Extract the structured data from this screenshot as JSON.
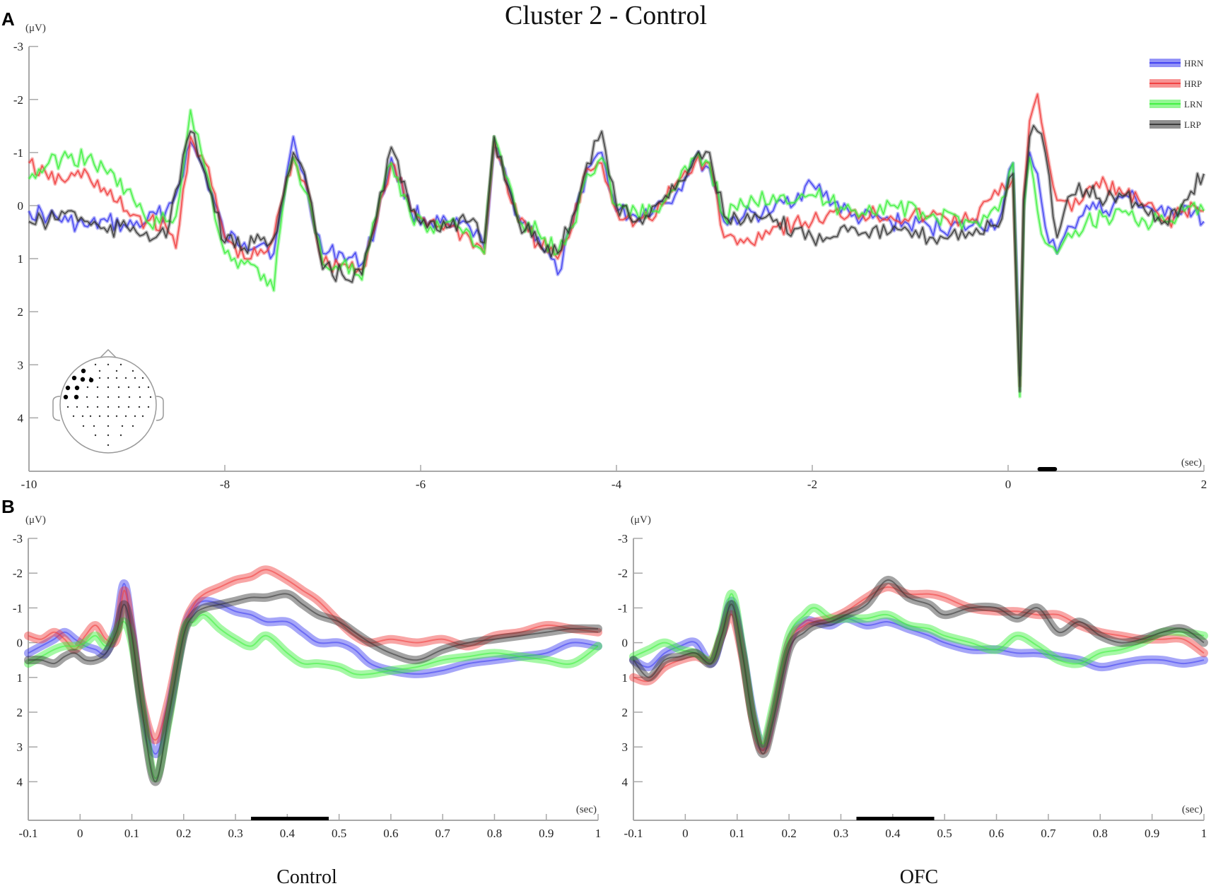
{
  "figure": {
    "title": "Cluster 2 - Control",
    "panel_a_letter": "A",
    "panel_b_letter": "B",
    "y_unit": "(μV)",
    "x_unit": "(sec)",
    "subplot_left_title": "Control",
    "subplot_right_title": "OFC",
    "legend": [
      {
        "label": "HRN",
        "color": "#3a3af0"
      },
      {
        "label": "HRP",
        "color": "#f03a3a"
      },
      {
        "label": "LRN",
        "color": "#3af03a"
      },
      {
        "label": "LRP",
        "color": "#333333"
      }
    ],
    "scalp_map": {
      "highlighted_electrodes": 8,
      "description": "left frontal-temporal cluster"
    }
  },
  "chart_data": [
    {
      "id": "panel-a",
      "type": "line",
      "title": "Cluster 2 - Control",
      "xlabel": "(sec)",
      "ylabel": "(μV)",
      "xlim": [
        -10,
        2
      ],
      "ylim": [
        4.8,
        -3
      ],
      "y_inverted": true,
      "xticks": [
        -10,
        -8,
        -6,
        -4,
        -2,
        0,
        2
      ],
      "xtick_labels": [
        "-10",
        "-8",
        "-6",
        "-4",
        "-2",
        "0",
        "2"
      ],
      "yticks": [
        -3,
        -2,
        -1,
        0,
        1,
        2,
        3,
        4
      ],
      "ytick_labels": [
        "-3",
        "-2",
        "-1",
        "0",
        "1",
        "2",
        "3",
        "4"
      ],
      "legend_position": "top-right",
      "significance_bar": [
        0.3,
        0.5
      ],
      "x": [
        -10,
        -9.8,
        -9.6,
        -9.4,
        -9.2,
        -9.0,
        -8.8,
        -8.6,
        -8.5,
        -8.35,
        -8.2,
        -8.0,
        -7.8,
        -7.6,
        -7.5,
        -7.4,
        -7.3,
        -7.15,
        -7.0,
        -6.8,
        -6.6,
        -6.45,
        -6.3,
        -6.1,
        -5.9,
        -5.7,
        -5.5,
        -5.35,
        -5.25,
        -5.0,
        -4.8,
        -4.6,
        -4.45,
        -4.3,
        -4.15,
        -4.0,
        -3.8,
        -3.6,
        -3.4,
        -3.2,
        -3.05,
        -2.9,
        -2.7,
        -2.4,
        -2.0,
        -1.6,
        -1.2,
        -0.8,
        -0.4,
        -0.1,
        0.05,
        0.12,
        0.16,
        0.22,
        0.3,
        0.38,
        0.5,
        0.65,
        0.8,
        1.0,
        1.2,
        1.4,
        1.6,
        1.8,
        2.0
      ],
      "series": [
        {
          "name": "HRN",
          "color": "#3a3af0",
          "values": [
            0.1,
            0.2,
            0.3,
            0.4,
            0.3,
            0.4,
            0.3,
            0.1,
            -0.2,
            -1.2,
            -0.6,
            0.6,
            0.7,
            0.7,
            0.9,
            -0.1,
            -1.3,
            -0.2,
            0.9,
            0.9,
            1.1,
            0.3,
            -0.9,
            0.1,
            0.3,
            0.4,
            0.4,
            0.8,
            -1.1,
            0.2,
            0.6,
            1.3,
            0.4,
            -0.7,
            -1.0,
            0.1,
            0.2,
            0.0,
            -0.2,
            -0.9,
            -0.7,
            0.3,
            0.2,
            0.1,
            -0.4,
            0.2,
            0.3,
            0.4,
            0.4,
            0.3,
            -0.8,
            3.2,
            0.0,
            -1.0,
            -0.6,
            0.4,
            0.9,
            0.4,
            0.0,
            0.1,
            -0.2,
            0.0,
            0.2,
            0.0,
            0.3
          ]
        },
        {
          "name": "HRP",
          "color": "#f03a3a",
          "values": [
            -0.8,
            -0.5,
            -0.5,
            -0.6,
            -0.2,
            0.1,
            0.3,
            0.4,
            0.8,
            -1.3,
            -0.8,
            0.6,
            1.0,
            0.9,
            0.6,
            -0.2,
            -0.9,
            -0.3,
            1.1,
            1.1,
            1.2,
            0.3,
            -0.8,
            0.1,
            0.3,
            0.4,
            0.6,
            0.9,
            -1.2,
            0.3,
            0.7,
            1.0,
            0.4,
            -0.7,
            -0.8,
            0.1,
            0.3,
            0.2,
            -0.4,
            -0.8,
            -0.8,
            0.6,
            0.7,
            0.4,
            0.3,
            0.1,
            0.2,
            0.2,
            0.3,
            -0.2,
            -0.5,
            3.4,
            -0.2,
            -1.6,
            -2.1,
            -1.2,
            -0.1,
            0.1,
            -0.3,
            -0.4,
            -0.2,
            0.0,
            0.3,
            0.1,
            0.1
          ]
        },
        {
          "name": "LRN",
          "color": "#3af03a",
          "values": [
            -0.5,
            -0.8,
            -0.9,
            -0.9,
            -0.6,
            -0.3,
            0.3,
            0.3,
            0.2,
            -1.8,
            -0.7,
            0.9,
            1.1,
            1.3,
            1.6,
            -0.1,
            -0.9,
            -0.2,
            1.1,
            1.1,
            1.4,
            0.2,
            -0.8,
            0.2,
            0.4,
            0.3,
            0.5,
            0.9,
            -1.3,
            0.3,
            0.5,
            0.9,
            0.4,
            -0.6,
            -0.9,
            0.0,
            0.1,
            0.1,
            -0.3,
            -0.9,
            -0.8,
            0.2,
            0.0,
            -0.2,
            -0.2,
            0.1,
            0.0,
            0.2,
            0.3,
            0.1,
            -0.8,
            3.6,
            0.1,
            -0.9,
            0.1,
            0.7,
            0.9,
            0.6,
            0.3,
            0.2,
            0.1,
            0.3,
            0.3,
            0.1,
            0.1
          ]
        },
        {
          "name": "LRP",
          "color": "#333333",
          "values": [
            0.3,
            0.3,
            0.1,
            0.3,
            0.5,
            0.4,
            0.5,
            0.6,
            -0.3,
            -1.4,
            -0.6,
            0.7,
            0.8,
            0.6,
            0.6,
            -0.2,
            -1.0,
            -0.3,
            1.2,
            1.3,
            1.3,
            0.2,
            -1.1,
            0.1,
            0.3,
            0.4,
            0.3,
            0.7,
            -1.3,
            0.3,
            0.7,
            0.9,
            0.2,
            -0.8,
            -1.4,
            0.0,
            0.3,
            0.0,
            -0.3,
            -0.9,
            -1.0,
            0.2,
            0.3,
            0.3,
            0.6,
            0.4,
            0.5,
            0.6,
            0.5,
            0.4,
            -0.6,
            3.5,
            -0.1,
            -1.3,
            -1.4,
            -1.0,
            0.6,
            -0.2,
            -0.3,
            -0.1,
            -0.2,
            0.1,
            0.3,
            -0.1,
            -0.6
          ]
        }
      ]
    },
    {
      "id": "panel-b-control",
      "type": "line",
      "title": "Control",
      "xlabel": "(sec)",
      "ylabel": "(μV)",
      "xlim": [
        -0.1,
        1
      ],
      "ylim": [
        5.1,
        -3
      ],
      "y_inverted": true,
      "xticks": [
        -0.1,
        0,
        0.1,
        0.2,
        0.3,
        0.4,
        0.5,
        0.6,
        0.7,
        0.8,
        0.9,
        1
      ],
      "xtick_labels": [
        "-0.1",
        "0",
        "0.1",
        "0.2",
        "0.3",
        "0.4",
        "0.5",
        "0.6",
        "0.7",
        "0.8",
        "0.9",
        "1"
      ],
      "yticks": [
        -3,
        -2,
        -1,
        0,
        1,
        2,
        3,
        4
      ],
      "ytick_labels": [
        "-3",
        "-2",
        "-1",
        "0",
        "1",
        "2",
        "3",
        "4"
      ],
      "significance_bar": [
        0.33,
        0.48
      ],
      "x": [
        -0.1,
        -0.075,
        -0.05,
        -0.03,
        -0.01,
        0.01,
        0.03,
        0.05,
        0.07,
        0.085,
        0.1,
        0.12,
        0.145,
        0.17,
        0.2,
        0.22,
        0.24,
        0.27,
        0.3,
        0.33,
        0.36,
        0.4,
        0.43,
        0.46,
        0.5,
        0.53,
        0.56,
        0.6,
        0.65,
        0.7,
        0.75,
        0.8,
        0.85,
        0.9,
        0.95,
        1.0
      ],
      "series": [
        {
          "name": "HRN",
          "color": "#3a3af0",
          "values": [
            0.3,
            0.1,
            -0.1,
            -0.3,
            -0.1,
            0.1,
            0.2,
            0.3,
            -0.5,
            -1.7,
            -0.4,
            1.8,
            3.2,
            2.0,
            -0.3,
            -1.0,
            -1.2,
            -1.1,
            -0.9,
            -0.8,
            -0.6,
            -0.6,
            -0.3,
            0.0,
            0.0,
            0.2,
            0.6,
            0.8,
            0.9,
            0.8,
            0.6,
            0.5,
            0.4,
            0.3,
            0.0,
            0.1
          ]
        },
        {
          "name": "HRP",
          "color": "#f03a3a",
          "values": [
            -0.2,
            -0.1,
            -0.3,
            -0.1,
            0.2,
            -0.2,
            -0.5,
            -0.1,
            -0.1,
            -1.5,
            -0.3,
            1.7,
            2.8,
            1.7,
            -0.4,
            -1.1,
            -1.4,
            -1.6,
            -1.8,
            -1.9,
            -2.1,
            -1.8,
            -1.5,
            -1.2,
            -0.6,
            -0.2,
            0.0,
            -0.1,
            0.0,
            -0.1,
            0.1,
            -0.2,
            -0.3,
            -0.5,
            -0.4,
            -0.3
          ]
        },
        {
          "name": "LRN",
          "color": "#3af03a",
          "values": [
            0.6,
            0.4,
            0.2,
            0.1,
            0.1,
            0.0,
            -0.2,
            0.1,
            -0.3,
            -0.6,
            0.0,
            1.9,
            3.9,
            2.3,
            -0.3,
            -0.6,
            -0.8,
            -0.4,
            -0.1,
            0.1,
            -0.2,
            0.3,
            0.6,
            0.6,
            0.7,
            0.9,
            0.9,
            0.8,
            0.7,
            0.5,
            0.4,
            0.3,
            0.4,
            0.5,
            0.6,
            0.1
          ]
        },
        {
          "name": "LRP",
          "color": "#333333",
          "values": [
            0.5,
            0.5,
            0.6,
            0.4,
            0.3,
            0.5,
            0.5,
            0.3,
            -0.3,
            -1.1,
            -0.2,
            2.0,
            4.0,
            2.2,
            -0.2,
            -0.8,
            -1.0,
            -1.1,
            -1.2,
            -1.3,
            -1.3,
            -1.4,
            -1.1,
            -0.8,
            -0.6,
            -0.3,
            0.0,
            0.3,
            0.5,
            0.2,
            0.0,
            -0.1,
            -0.2,
            -0.3,
            -0.4,
            -0.4
          ]
        }
      ]
    },
    {
      "id": "panel-b-ofc",
      "type": "line",
      "title": "OFC",
      "xlabel": "(sec)",
      "ylabel": "(μV)",
      "xlim": [
        -0.1,
        1
      ],
      "ylim": [
        5.1,
        -3
      ],
      "y_inverted": true,
      "xticks": [
        -0.1,
        0,
        0.1,
        0.2,
        0.3,
        0.4,
        0.5,
        0.6,
        0.7,
        0.8,
        0.9,
        1
      ],
      "xtick_labels": [
        "-0.1",
        "0",
        "0.1",
        "0.2",
        "0.3",
        "0.4",
        "0.5",
        "0.6",
        "0.7",
        "0.8",
        "0.9",
        "1"
      ],
      "yticks": [
        -3,
        -2,
        -1,
        0,
        1,
        2,
        3,
        4
      ],
      "ytick_labels": [
        "-3",
        "-2",
        "-1",
        "0",
        "1",
        "2",
        "3",
        "4"
      ],
      "significance_bar": [
        0.33,
        0.48
      ],
      "x": [
        -0.1,
        -0.07,
        -0.04,
        -0.01,
        0.02,
        0.05,
        0.07,
        0.09,
        0.11,
        0.13,
        0.15,
        0.17,
        0.2,
        0.23,
        0.25,
        0.28,
        0.31,
        0.35,
        0.39,
        0.43,
        0.47,
        0.5,
        0.55,
        0.6,
        0.64,
        0.68,
        0.72,
        0.76,
        0.8,
        0.84,
        0.88,
        0.92,
        0.96,
        1.0
      ],
      "series": [
        {
          "name": "HRN",
          "color": "#3a3af0",
          "values": [
            0.5,
            0.7,
            0.3,
            0.1,
            0.0,
            0.6,
            -0.2,
            -1.2,
            0.2,
            2.0,
            3.0,
            2.0,
            0.0,
            -0.6,
            -0.6,
            -0.5,
            -0.7,
            -0.5,
            -0.6,
            -0.4,
            -0.2,
            0.0,
            0.2,
            0.2,
            0.3,
            0.3,
            0.4,
            0.5,
            0.7,
            0.6,
            0.5,
            0.5,
            0.6,
            0.5
          ]
        },
        {
          "name": "HRP",
          "color": "#f03a3a",
          "values": [
            1.0,
            1.1,
            0.7,
            0.5,
            0.4,
            0.5,
            -0.2,
            -0.8,
            0.4,
            2.2,
            3.1,
            2.0,
            0.0,
            -0.5,
            -0.6,
            -0.7,
            -0.9,
            -1.3,
            -1.6,
            -1.4,
            -1.4,
            -1.3,
            -1.0,
            -0.9,
            -0.9,
            -0.8,
            -0.8,
            -0.5,
            -0.3,
            -0.2,
            -0.1,
            -0.1,
            -0.1,
            0.3
          ]
        },
        {
          "name": "LRN",
          "color": "#3af03a",
          "values": [
            0.4,
            0.2,
            0.0,
            0.2,
            0.3,
            0.5,
            -0.3,
            -1.4,
            0.2,
            2.1,
            2.9,
            1.8,
            -0.2,
            -0.8,
            -1.0,
            -0.7,
            -0.7,
            -0.7,
            -0.8,
            -0.5,
            -0.4,
            -0.2,
            0.0,
            0.2,
            -0.2,
            0.1,
            0.5,
            0.6,
            0.3,
            0.2,
            0.0,
            -0.3,
            -0.3,
            -0.2
          ]
        },
        {
          "name": "LRP",
          "color": "#333333",
          "values": [
            0.5,
            1.0,
            0.5,
            0.4,
            0.3,
            0.6,
            -0.2,
            -1.1,
            0.3,
            2.2,
            3.2,
            2.2,
            0.2,
            -0.3,
            -0.5,
            -0.6,
            -0.8,
            -1.1,
            -1.8,
            -1.3,
            -1.1,
            -0.8,
            -1.0,
            -1.0,
            -0.7,
            -1.0,
            -0.3,
            -0.6,
            -0.2,
            0.0,
            -0.1,
            -0.3,
            -0.4,
            0.0
          ]
        }
      ]
    }
  ]
}
